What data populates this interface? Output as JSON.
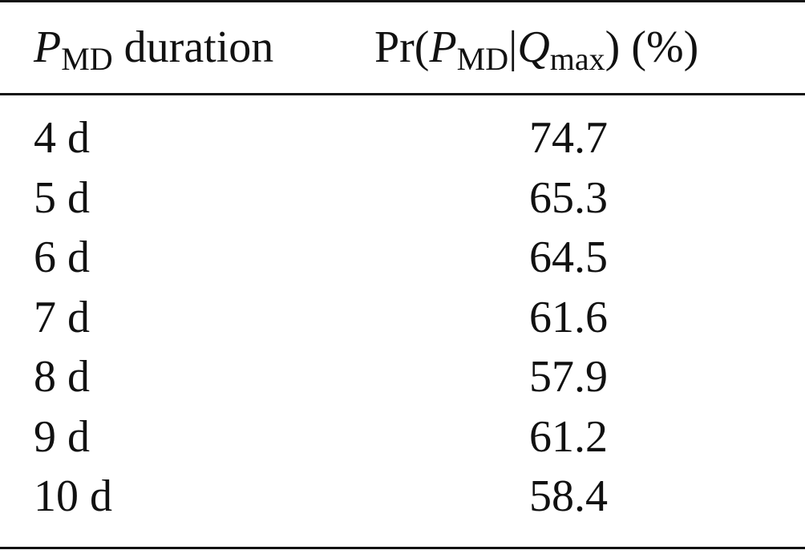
{
  "table": {
    "header": {
      "col1": {
        "symbol": "P",
        "subscript": "MD",
        "text": " duration"
      },
      "col2": {
        "prefix": "Pr(",
        "symbol1": "P",
        "sub1": "MD",
        "bar": "|",
        "symbol2": "Q",
        "sub2": "max",
        "suffix": ") (%)"
      }
    },
    "rows": [
      {
        "duration": "4 d",
        "value": "74.7"
      },
      {
        "duration": "5 d",
        "value": "65.3"
      },
      {
        "duration": "6 d",
        "value": "64.5"
      },
      {
        "duration": "7 d",
        "value": "61.6"
      },
      {
        "duration": "8 d",
        "value": "57.9"
      },
      {
        "duration": "9 d",
        "value": "61.2"
      },
      {
        "duration": "10 d",
        "value": "58.4"
      }
    ]
  }
}
